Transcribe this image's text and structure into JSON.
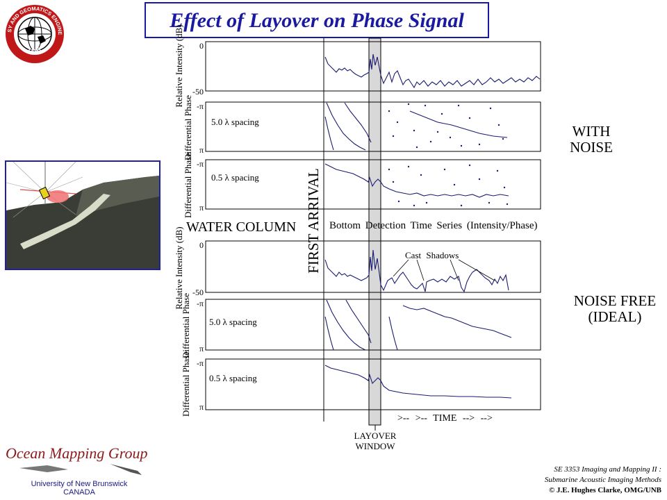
{
  "title": "Effect of Layover on Phase Signal",
  "logo": {
    "text_top": "GEODESY AND GEOMATICS ENGINEERING",
    "text_bottom": "UNB"
  },
  "axis_labels": {
    "relative_intensity": "Relative Intensity (dB)",
    "differential_phase": "Differential Phase",
    "intensity_top_tick": "0",
    "intensity_bottom_tick": "-50",
    "phase_top_tick": "-π",
    "phase_bottom_tick": "π"
  },
  "spacing_labels": {
    "coarse": "5.0 λ spacing",
    "fine": "0.5 λ spacing"
  },
  "side_labels": {
    "with_noise_1": "WITH",
    "with_noise_2": "NOISE",
    "noise_free_1": "NOISE FREE",
    "noise_free_2": "(IDEAL)"
  },
  "annotations": {
    "first_arrival": "FIRST ARRIVAL",
    "water_column": "WATER COLUMN",
    "series_caption": "Bottom Detection Time Series (Intensity/Phase)",
    "cast_shadows": "Cast Shadows",
    "time_axis": ">-- >-- TIME --> -->",
    "layover_1": "LAYOVER",
    "layover_2": "WINDOW"
  },
  "footer": {
    "group_name": "Ocean Mapping Group",
    "university": "University of New Brunswick",
    "country": "CANADA",
    "course_1": "SE 3353 Imaging and Mapping II :",
    "course_2": "Submarine Acoustic Imaging Methods",
    "copyright": "© J.E. Hughes Clarke, OMG/UNB"
  },
  "colors": {
    "accent": "#1a1aa0",
    "trace": "#1a1a70",
    "layover_band": "#d8d8d8",
    "brand": "#8b1a1a"
  }
}
